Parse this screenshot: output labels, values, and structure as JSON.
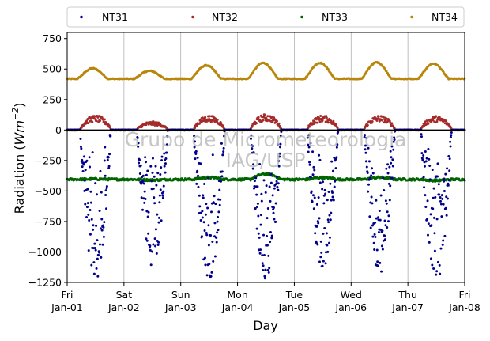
{
  "chart_data": {
    "type": "scatter",
    "title": "",
    "xlabel": "Day",
    "ylabel_main": "Radiation (",
    "ylabel_unit": "Wm",
    "ylabel_exp": "−2",
    "ylabel_close": ")",
    "ylim": [
      -1250,
      800
    ],
    "yticks": [
      750,
      500,
      250,
      0,
      -250,
      -500,
      -750,
      -1000,
      -1250
    ],
    "ytick_labels": [
      "750",
      "500",
      "250",
      "0",
      "−250",
      "−500",
      "−750",
      "−1000",
      "−1250"
    ],
    "xlim_days": [
      0,
      7
    ],
    "xticks": [
      {
        "day": 0,
        "weekday": "Fri",
        "date": "Jan-01"
      },
      {
        "day": 1,
        "weekday": "Sat",
        "date": "Jan-02"
      },
      {
        "day": 2,
        "weekday": "Sun",
        "date": "Jan-03"
      },
      {
        "day": 3,
        "weekday": "Mon",
        "date": "Jan-04"
      },
      {
        "day": 4,
        "weekday": "Tue",
        "date": "Jan-05"
      },
      {
        "day": 5,
        "weekday": "Wed",
        "date": "Jan-06"
      },
      {
        "day": 6,
        "weekday": "Thu",
        "date": "Jan-07"
      },
      {
        "day": 7,
        "weekday": "Fri",
        "date": "Jan-08"
      }
    ],
    "grid": "vertical",
    "legend_position": "top",
    "watermark": [
      "Grupo de Micrometeorologia",
      "IAG/USP"
    ],
    "series": [
      {
        "name": "NT31",
        "color": "#00008b",
        "marker": "dot",
        "baseline": 0,
        "daily_minimum": [
          -1230,
          -1120,
          -1230,
          -1240,
          -1140,
          -1180,
          -1250
        ],
        "description_values": {
          "night": 0,
          "midday_typical": -600
        }
      },
      {
        "name": "NT32",
        "color": "#a52a2a",
        "marker": "dot",
        "baseline": 0,
        "daily_peak": [
          120,
          70,
          120,
          130,
          120,
          120,
          115
        ]
      },
      {
        "name": "NT33",
        "color": "#006400",
        "marker": "dot",
        "baseline": -405,
        "daily_peak": [
          -400,
          -410,
          -380,
          -360,
          -380,
          -390,
          -420
        ],
        "daily_trough": [
          -420,
          -420,
          -415,
          -430,
          -420,
          -440,
          -440
        ]
      },
      {
        "name": "NT34",
        "color": "#b8860b",
        "marker": "dot",
        "baseline": 420,
        "daily_peak": [
          505,
          485,
          530,
          550,
          550,
          555,
          545
        ]
      }
    ]
  }
}
